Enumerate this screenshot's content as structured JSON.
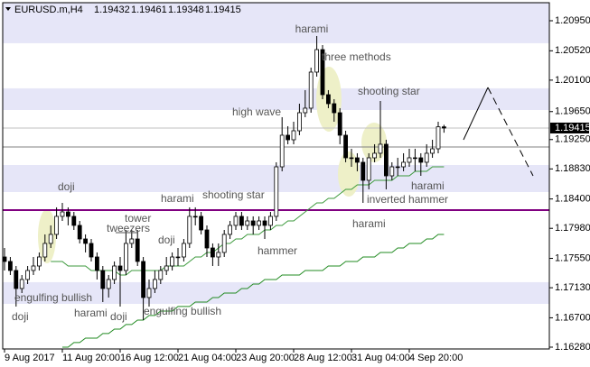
{
  "chart_data": {
    "type": "candlestick",
    "symbol": "EURUSD.m,H4",
    "up_color": "#ffffff",
    "down_color": "#000000",
    "edge_color": "#000000",
    "ylim": [
      1.16254,
      1.21208
    ],
    "yticks": [
      {
        "value": 1.2095,
        "label": "1.20950"
      },
      {
        "value": 1.2052,
        "label": "1.20520"
      },
      {
        "value": 1.201,
        "label": "1.20100"
      },
      {
        "value": 1.1965,
        "label": "1.19650"
      },
      {
        "value": 1.1925,
        "label": "1.19250"
      },
      {
        "value": 1.1883,
        "label": "1.18830"
      },
      {
        "value": 1.184,
        "label": "1.18400"
      },
      {
        "value": 1.1798,
        "label": "1.17980"
      },
      {
        "value": 1.1755,
        "label": "1.17550"
      },
      {
        "value": 1.1713,
        "label": "1.17130"
      },
      {
        "value": 1.167,
        "label": "1.16700"
      },
      {
        "value": 1.1628,
        "label": "1.16280"
      }
    ],
    "categories": [
      "9 Aug 2017",
      null,
      null,
      null,
      null,
      null,
      null,
      null,
      null,
      null,
      "11 Aug 20:00",
      null,
      null,
      null,
      null,
      null,
      null,
      null,
      null,
      null,
      "16 Aug 12:00",
      null,
      null,
      null,
      null,
      null,
      null,
      null,
      null,
      null,
      "21 Aug 04:00",
      null,
      null,
      null,
      null,
      null,
      null,
      null,
      null,
      null,
      "23 Aug 20:00",
      null,
      null,
      null,
      null,
      null,
      null,
      null,
      null,
      null,
      "28 Aug 12:00",
      null,
      null,
      null,
      null,
      null,
      null,
      null,
      null,
      null,
      "31 Aug 04:00",
      null,
      null,
      null,
      null,
      null,
      null,
      null,
      null,
      null,
      "4 Sep 20:00",
      null,
      null,
      null,
      null,
      null,
      null
    ],
    "ohlc": [
      [
        1.1757,
        1.17699,
        1.17377,
        1.17506
      ],
      [
        1.17506,
        1.1757,
        1.17312,
        1.17377
      ],
      [
        1.17377,
        1.17441,
        1.16861,
        1.17119
      ],
      [
        1.17119,
        1.17312,
        1.17054,
        1.17248
      ],
      [
        1.17248,
        1.17441,
        1.17183,
        1.17377
      ],
      [
        1.17377,
        1.1757,
        1.17312,
        1.17441
      ],
      [
        1.17441,
        1.17635,
        1.17377,
        1.1757
      ],
      [
        1.1757,
        1.17893,
        1.17506,
        1.17764
      ],
      [
        1.17764,
        1.18022,
        1.17699,
        1.17893
      ],
      [
        1.17893,
        1.1828,
        1.17828,
        1.18151
      ],
      [
        1.18151,
        1.18344,
        1.18086,
        1.18215
      ],
      [
        1.18215,
        1.1828,
        1.18022,
        1.18151
      ],
      [
        1.18151,
        1.18215,
        1.17957,
        1.18022
      ],
      [
        1.18022,
        1.18086,
        1.17764,
        1.17828
      ],
      [
        1.17828,
        1.17893,
        1.17635,
        1.17764
      ],
      [
        1.17764,
        1.17828,
        1.17506,
        1.1757
      ],
      [
        1.1757,
        1.17635,
        1.17248,
        1.17377
      ],
      [
        1.17377,
        1.17441,
        1.16925,
        1.17119
      ],
      [
        1.17119,
        1.17312,
        1.1699,
        1.17248
      ],
      [
        1.17248,
        1.17506,
        1.17183,
        1.17441
      ],
      [
        1.17441,
        1.1757,
        1.16861,
        1.17377
      ],
      [
        1.17377,
        1.17957,
        1.17312,
        1.17764
      ],
      [
        1.17764,
        1.17957,
        1.17699,
        1.17828
      ],
      [
        1.17828,
        1.17957,
        1.17441,
        1.17506
      ],
      [
        1.17506,
        1.1757,
        1.16667,
        1.1699
      ],
      [
        1.1699,
        1.17248,
        1.16861,
        1.17119
      ],
      [
        1.17119,
        1.17377,
        1.17054,
        1.17248
      ],
      [
        1.17248,
        1.17441,
        1.17183,
        1.17377
      ],
      [
        1.17377,
        1.1757,
        1.17312,
        1.17441
      ],
      [
        1.17441,
        1.17635,
        1.17377,
        1.1757
      ],
      [
        1.1757,
        1.17699,
        1.17441,
        1.1757
      ],
      [
        1.1757,
        1.17828,
        1.17506,
        1.17764
      ],
      [
        1.17764,
        1.1828,
        1.17699,
        1.18151
      ],
      [
        1.18151,
        1.1828,
        1.18022,
        1.18151
      ],
      [
        1.18151,
        1.18215,
        1.17893,
        1.17957
      ],
      [
        1.17957,
        1.18022,
        1.1757,
        1.17699
      ],
      [
        1.17699,
        1.17764,
        1.17441,
        1.1757
      ],
      [
        1.1757,
        1.17764,
        1.17441,
        1.17635
      ],
      [
        1.17635,
        1.17957,
        1.1757,
        1.17893
      ],
      [
        1.17893,
        1.18086,
        1.17828,
        1.18022
      ],
      [
        1.18022,
        1.18215,
        1.17957,
        1.18151
      ],
      [
        1.18151,
        1.18215,
        1.17957,
        1.18022
      ],
      [
        1.18022,
        1.18151,
        1.17957,
        1.18086
      ],
      [
        1.18086,
        1.18151,
        1.17893,
        1.18022
      ],
      [
        1.18022,
        1.18151,
        1.17957,
        1.18086
      ],
      [
        1.18086,
        1.18151,
        1.17828,
        1.18022
      ],
      [
        1.18022,
        1.18215,
        1.17957,
        1.18151
      ],
      [
        1.18151,
        1.18925,
        1.18086,
        1.1886
      ],
      [
        1.1886,
        1.1957,
        1.18796,
        1.19312
      ],
      [
        1.19312,
        1.19441,
        1.19183,
        1.19247
      ],
      [
        1.19247,
        1.19505,
        1.19183,
        1.19376
      ],
      [
        1.19376,
        1.19763,
        1.19312,
        1.19634
      ],
      [
        1.19634,
        1.19957,
        1.1957,
        1.19699
      ],
      [
        1.19699,
        1.20279,
        1.19634,
        1.20215
      ],
      [
        1.20215,
        1.20731,
        1.2015,
        1.20537
      ],
      [
        1.20537,
        1.20602,
        1.19828,
        1.19892
      ],
      [
        1.19892,
        1.19957,
        1.19699,
        1.19763
      ],
      [
        1.19763,
        1.19828,
        1.19505,
        1.19634
      ],
      [
        1.19634,
        1.19699,
        1.19183,
        1.19312
      ],
      [
        1.19312,
        1.19376,
        1.18925,
        1.18989
      ],
      [
        1.18989,
        1.19118,
        1.1886,
        1.18989
      ],
      [
        1.18989,
        1.19054,
        1.18796,
        1.18925
      ],
      [
        1.18925,
        1.18989,
        1.18344,
        1.18667
      ],
      [
        1.18667,
        1.19054,
        1.18538,
        1.18989
      ],
      [
        1.18989,
        1.19183,
        1.18925,
        1.19054
      ],
      [
        1.19054,
        1.19802,
        1.18989,
        1.19183
      ],
      [
        1.19183,
        1.19247,
        1.18538,
        1.18731
      ],
      [
        1.18731,
        1.18925,
        1.18667,
        1.1886
      ],
      [
        1.1886,
        1.18989,
        1.18731,
        1.1886
      ],
      [
        1.1886,
        1.19054,
        1.18796,
        1.18925
      ],
      [
        1.18925,
        1.19118,
        1.1886,
        1.18989
      ],
      [
        1.18989,
        1.19118,
        1.18796,
        1.18989
      ],
      [
        1.18989,
        1.19054,
        1.18731,
        1.18925
      ],
      [
        1.18925,
        1.19183,
        1.1886,
        1.19054
      ],
      [
        1.19054,
        1.19247,
        1.18989,
        1.19118
      ],
      [
        1.19118,
        1.19505,
        1.19054,
        1.19432
      ],
      [
        1.19432,
        1.19461,
        1.19348,
        1.19415
      ]
    ],
    "series": [
      {
        "color": "#3c9a3c",
        "values": [
          null,
          null,
          null,
          null,
          null,
          null,
          null,
          null,
          1.17506,
          1.17506,
          1.17506,
          1.17441,
          1.17441,
          1.17441,
          1.17441,
          1.17377,
          1.17377,
          1.17377,
          1.17377,
          1.17377,
          1.17312,
          1.17312,
          1.17377,
          1.17377,
          1.17377,
          1.17377,
          1.17377,
          1.17377,
          1.17441,
          1.17441,
          1.17441,
          1.17441,
          1.17506,
          1.1757,
          1.1757,
          1.17635,
          1.17635,
          1.17699,
          1.17764,
          1.17764,
          1.17828,
          1.17828,
          1.17893,
          1.17893,
          1.17893,
          1.17957,
          1.17957,
          1.18022,
          1.18022,
          1.18086,
          1.18086,
          1.18151,
          1.18215,
          1.1828,
          1.18344,
          1.18344,
          1.18409,
          1.18409,
          1.18473,
          1.18538,
          1.18538,
          1.18602,
          1.18602,
          1.18602,
          1.18667,
          1.18667,
          1.18667,
          1.18667,
          1.18731,
          1.18731,
          1.18731,
          1.18796,
          1.18796,
          1.18796,
          1.1886,
          1.1886,
          1.1886
        ]
      },
      {
        "color": "#228b22",
        "values": [
          null,
          null,
          null,
          null,
          null,
          null,
          null,
          null,
          null,
          null,
          1.1628,
          1.1628,
          1.16345,
          1.16345,
          1.16409,
          1.16409,
          1.16409,
          1.16474,
          1.16474,
          1.16538,
          1.16538,
          1.16603,
          1.16603,
          1.16667,
          1.16667,
          1.16732,
          1.16732,
          1.16796,
          1.16796,
          1.16796,
          1.16861,
          1.16861,
          1.16861,
          1.16925,
          1.16925,
          1.16925,
          1.1699,
          1.1699,
          1.17054,
          1.17054,
          1.17054,
          1.17119,
          1.17119,
          1.17183,
          1.17183,
          1.17248,
          1.17248,
          1.17248,
          1.17312,
          1.17312,
          1.17312,
          1.17312,
          1.17377,
          1.17377,
          1.17377,
          1.17377,
          1.17441,
          1.17441,
          1.17441,
          1.17506,
          1.17506,
          1.17506,
          1.1757,
          1.1757,
          1.1757,
          1.17635,
          1.17635,
          1.17635,
          1.17699,
          1.17699,
          1.17764,
          1.17764,
          1.17764,
          1.17828,
          1.17828,
          1.17893,
          1.17893
        ]
      }
    ],
    "zones": [
      {
        "from": 1.20628,
        "to": 1.21208
      },
      {
        "from": 1.19673,
        "to": 1.19983
      },
      {
        "from": 1.18499,
        "to": 1.18886
      },
      {
        "from": 1.16899,
        "to": 1.17209
      }
    ],
    "zone_color": "#e6e6f8",
    "levels": [
      {
        "value": 1.19144,
        "color": "#808080"
      },
      {
        "value": 1.18241,
        "color": "#800080"
      }
    ],
    "annotations": [
      "harami",
      "three methods",
      "shooting star",
      "high wave",
      "doji",
      "harami",
      "shooting star",
      "tower",
      "tweezers",
      "doji",
      "hammer",
      "harami",
      "inverted hammer",
      "harami",
      "engulfing bullish",
      "harami",
      "doji",
      "engulfing bullish",
      "doji"
    ]
  }
}
